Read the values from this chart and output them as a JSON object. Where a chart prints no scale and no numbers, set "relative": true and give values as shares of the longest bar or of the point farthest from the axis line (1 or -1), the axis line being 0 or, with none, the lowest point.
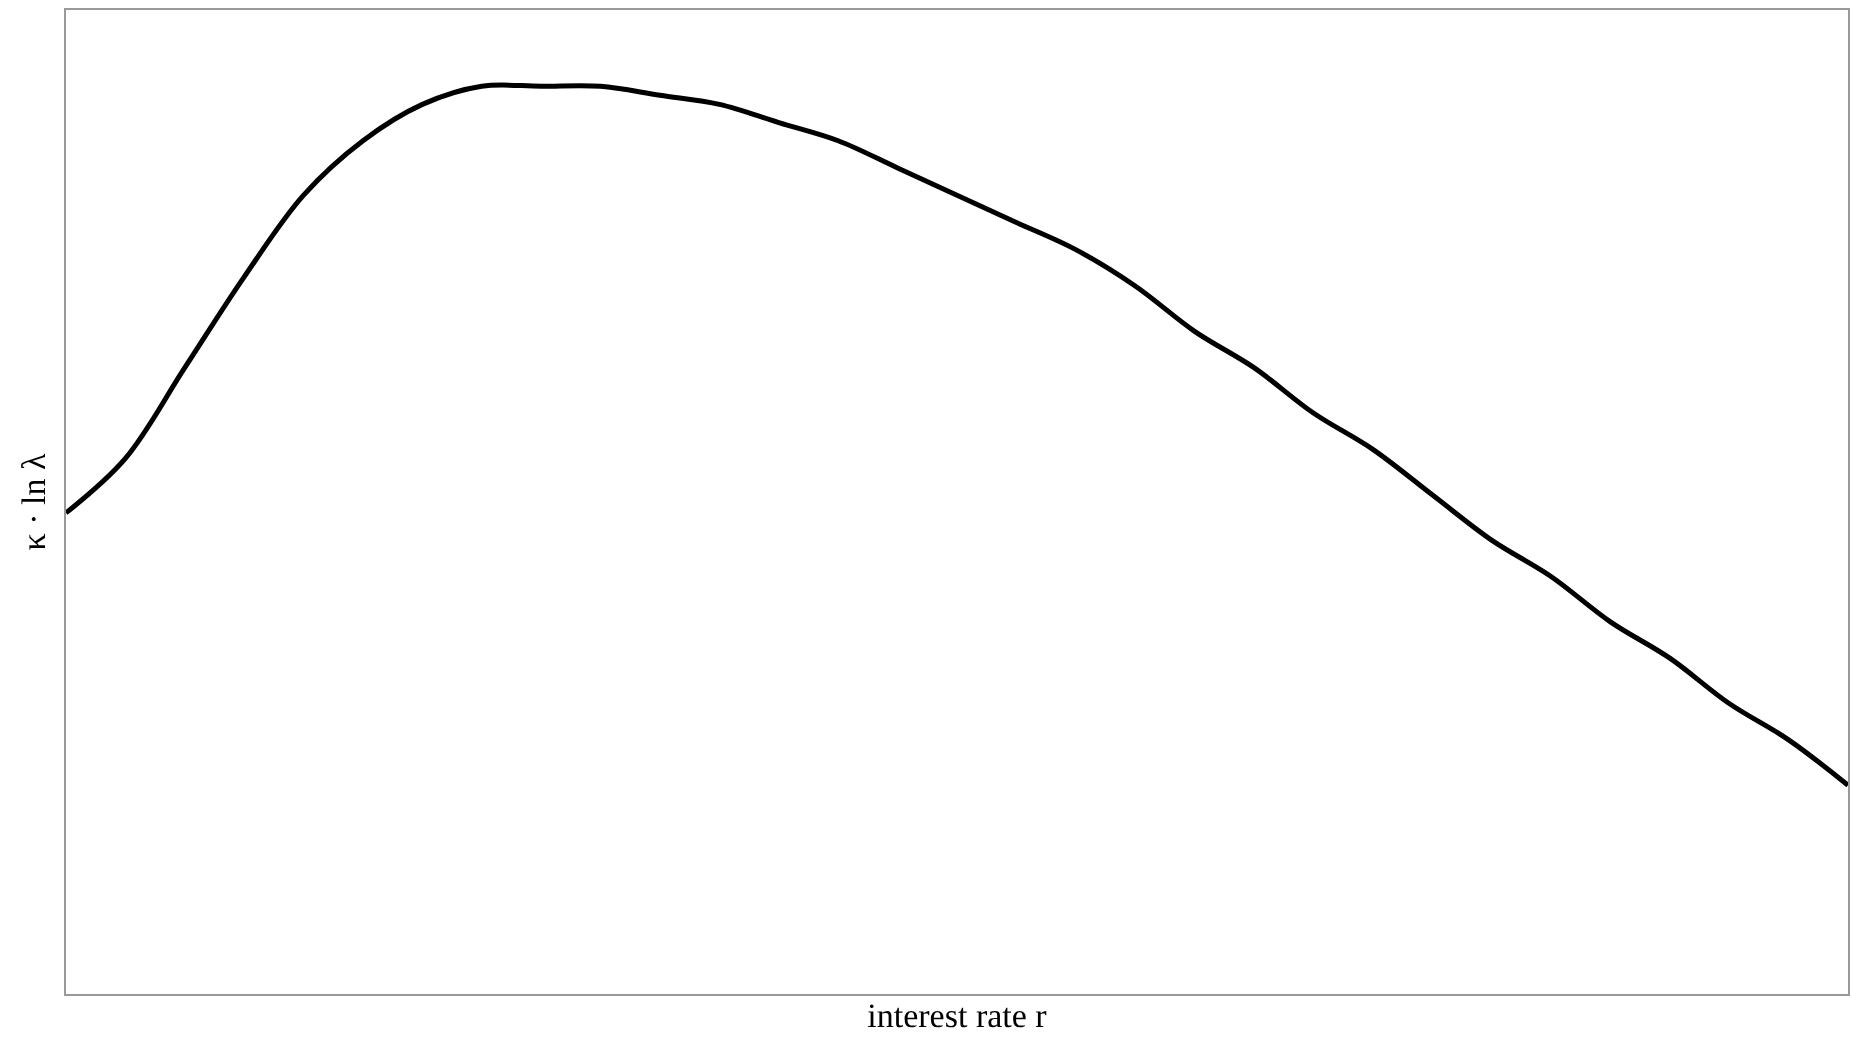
{
  "chart_data": {
    "type": "line",
    "relative": true,
    "xlabel": "interest rate r",
    "ylabel": "κ · ln λ",
    "categories": [
      null,
      null,
      null,
      null,
      null,
      null,
      null,
      null,
      null,
      null,
      null,
      null,
      null,
      null,
      null,
      null,
      null,
      null,
      null,
      null,
      null,
      null,
      null,
      null,
      null,
      null,
      null,
      null,
      null,
      null,
      null
    ],
    "series": [
      {
        "color": "#000000",
        "values": [
          0.53,
          0.59,
          0.69,
          0.79,
          0.88,
          0.94,
          0.98,
          1.0,
          1.0,
          1.0,
          0.99,
          0.98,
          0.96,
          0.94,
          0.91,
          0.88,
          0.85,
          0.82,
          0.78,
          0.73,
          0.69,
          0.64,
          0.6,
          0.55,
          0.5,
          0.46,
          0.41,
          0.37,
          0.32,
          0.28,
          0.23
        ]
      }
    ],
    "tick_labels": false,
    "marker": "none",
    "line_style": "solid"
  }
}
